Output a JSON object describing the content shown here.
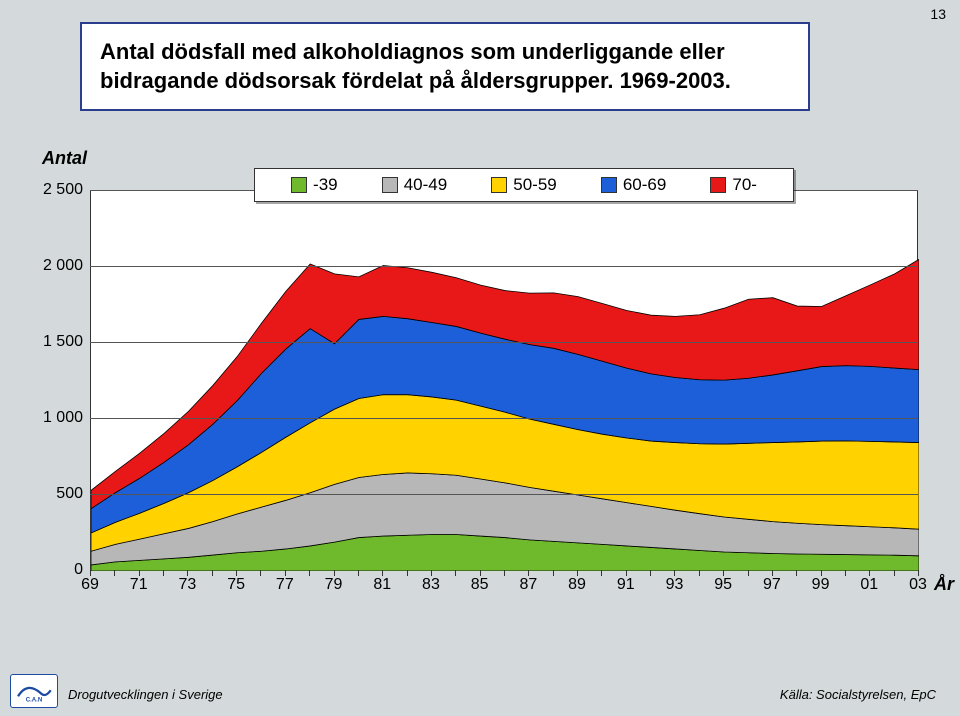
{
  "page_number": "13",
  "title": "Antal dödsfall med alkoholdiagnos som underliggande eller bidragande dödsorsak fördelat på åldersgrupper. 1969-2003.",
  "ylabel": "Antal",
  "xlabel": "År",
  "chart": {
    "type": "stacked-area",
    "background_color": "#ffffff",
    "plot_border_color": "#333333",
    "grid_color": "#555555",
    "ylim": [
      0,
      2500
    ],
    "ytick_step": 500,
    "yticks": [
      "0",
      "500",
      "1 000",
      "1 500",
      "2 000",
      "2 500"
    ],
    "x_categories": [
      "69",
      "70",
      "71",
      "72",
      "73",
      "74",
      "75",
      "76",
      "77",
      "78",
      "79",
      "80",
      "81",
      "82",
      "83",
      "84",
      "85",
      "86",
      "87",
      "88",
      "89",
      "90",
      "91",
      "92",
      "93",
      "94",
      "95",
      "96",
      "97",
      "98",
      "99",
      "00",
      "01",
      "02",
      "03"
    ],
    "xtick_labels": [
      "69",
      "71",
      "73",
      "75",
      "77",
      "79",
      "81",
      "83",
      "85",
      "87",
      "89",
      "91",
      "93",
      "95",
      "97",
      "99",
      "01",
      "03"
    ],
    "series": [
      {
        "label": "-39",
        "color": "#6fba2c",
        "values": [
          40,
          60,
          70,
          80,
          90,
          105,
          120,
          130,
          145,
          165,
          190,
          220,
          230,
          235,
          240,
          240,
          230,
          220,
          205,
          195,
          185,
          175,
          165,
          155,
          145,
          135,
          125,
          120,
          115,
          112,
          110,
          108,
          106,
          104,
          100
        ]
      },
      {
        "label": "40-49",
        "color": "#b7b7b7",
        "values": [
          90,
          115,
          140,
          165,
          190,
          220,
          255,
          290,
          320,
          350,
          380,
          395,
          405,
          410,
          400,
          390,
          375,
          360,
          345,
          330,
          315,
          300,
          285,
          270,
          255,
          242,
          230,
          220,
          210,
          202,
          195,
          190,
          185,
          180,
          175
        ]
      },
      {
        "label": "50-59",
        "color": "#ffd200",
        "values": [
          120,
          145,
          170,
          200,
          235,
          270,
          310,
          360,
          415,
          460,
          495,
          520,
          525,
          515,
          505,
          494,
          480,
          465,
          450,
          440,
          430,
          425,
          425,
          430,
          445,
          460,
          480,
          500,
          520,
          535,
          550,
          558,
          562,
          565,
          570
        ]
      },
      {
        "label": "60-69",
        "color": "#1d5fd9",
        "values": [
          160,
          195,
          230,
          270,
          315,
          370,
          435,
          520,
          580,
          620,
          430,
          520,
          515,
          500,
          490,
          485,
          480,
          480,
          490,
          500,
          495,
          480,
          460,
          442,
          428,
          421,
          421,
          428,
          445,
          468,
          490,
          495,
          493,
          486,
          480
        ]
      },
      {
        "label": "70-",
        "color": "#e81818",
        "values": [
          120,
          140,
          165,
          190,
          220,
          255,
          290,
          330,
          380,
          425,
          460,
          280,
          335,
          335,
          330,
          320,
          316,
          320,
          338,
          365,
          380,
          380,
          379,
          386,
          402,
          428,
          473,
          520,
          508,
          426,
          395,
          460,
          536,
          620,
          725
        ]
      }
    ]
  },
  "footer_left": "Drogutvecklingen i Sverige",
  "footer_right": "Källa: Socialstyrelsen, EpC",
  "logo_text": "C.A.N"
}
